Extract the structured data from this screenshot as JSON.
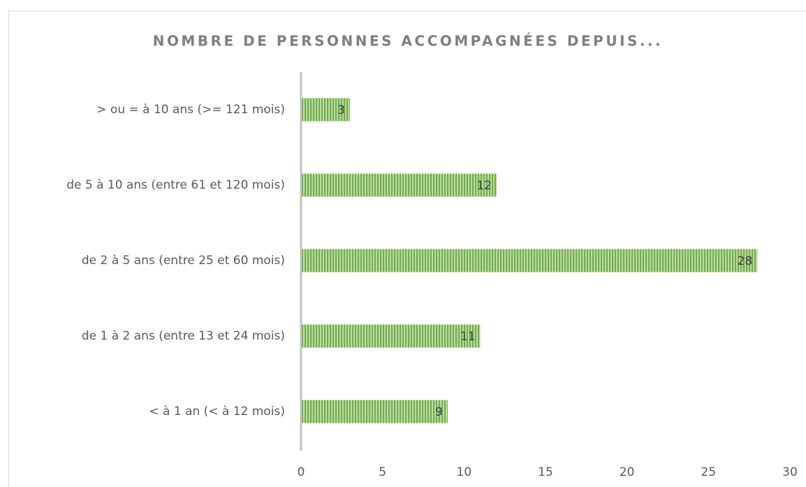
{
  "chart_data": {
    "type": "hbar",
    "title": "NOMBRE DE PERSONNES ACCOMPAGNÉES DEPUIS...",
    "categories": [
      "> ou = à 10 ans (>= 121 mois)",
      "de 5 à 10 ans (entre 61 et 120 mois)",
      "de 2 à 5 ans (entre 25 et 60 mois)",
      "de 1 à 2 ans (entre 13 et 24 mois)",
      "< à 1 an (< à 12 mois)"
    ],
    "values": [
      3,
      12,
      28,
      11,
      9
    ],
    "color": "#70ad47",
    "xlim": [
      0,
      30
    ],
    "xticks": [
      0,
      5,
      10,
      15,
      20,
      25,
      30
    ],
    "grid": false
  }
}
